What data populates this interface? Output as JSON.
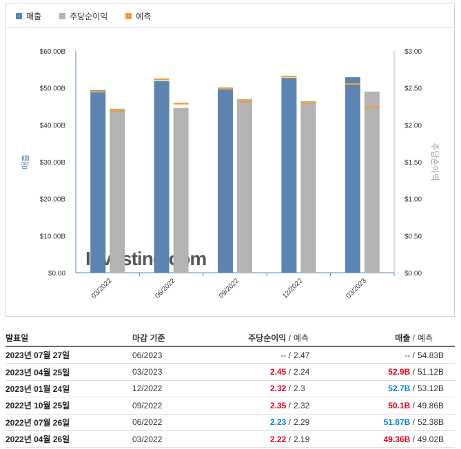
{
  "chart_data": {
    "type": "bar",
    "legend_placement": "top-left",
    "legend": [
      {
        "name": "매출",
        "color": "#5b84b1"
      },
      {
        "name": "주당순이익",
        "color": "#b3b3b3"
      },
      {
        "name": "예측",
        "color": "#e8a23a"
      }
    ],
    "categories": [
      "03/2022",
      "06/2022",
      "09/2022",
      "12/2022",
      "03/2023"
    ],
    "series": [
      {
        "name": "매출",
        "axis": "left",
        "color": "#5b84b1",
        "values": [
          49.36,
          51.87,
          50.1,
          52.7,
          52.9
        ],
        "forecast": [
          49.02,
          52.38,
          49.86,
          53.12,
          51.12
        ]
      },
      {
        "name": "주당순이익",
        "axis": "right",
        "color": "#b3b3b3",
        "values": [
          2.22,
          2.23,
          2.35,
          2.32,
          2.45
        ],
        "forecast": [
          2.19,
          2.29,
          2.32,
          2.3,
          2.24
        ]
      }
    ],
    "left_axis": {
      "label": "매출",
      "ylim": [
        0,
        60
      ],
      "ticks": [
        "$0.00",
        "$10.00B",
        "$20.00B",
        "$30.00B",
        "$40.00B",
        "$50.00B",
        "$60.00B"
      ]
    },
    "right_axis": {
      "label": "주당순이익",
      "ylim": [
        0,
        3
      ],
      "ticks": [
        "$0.00",
        "$0.50",
        "$1.00",
        "$1.50",
        "$2.00",
        "$2.50",
        "$3.00"
      ]
    },
    "grid": false,
    "watermark": "Investing.com"
  },
  "table": {
    "headers": {
      "date": "발표일",
      "period": "마감 기준",
      "eps": "주당순이익",
      "eps_forecast": "예측",
      "revenue": "매출",
      "revenue_forecast": "예측",
      "slash": "/"
    },
    "rows": [
      {
        "date": "2023년 07월 27일",
        "period": "06/2023",
        "eps": "--",
        "eps_status": "neutral",
        "eps_forecast": "2.47",
        "revenue": "--",
        "revenue_status": "neutral",
        "revenue_forecast": "54.83B"
      },
      {
        "date": "2023년 04월 25일",
        "period": "03/2023",
        "eps": "2.45",
        "eps_status": "bad",
        "eps_forecast": "2.24",
        "revenue": "52.9B",
        "revenue_status": "bad",
        "revenue_forecast": "51.12B"
      },
      {
        "date": "2023년 01월 24일",
        "period": "12/2022",
        "eps": "2.32",
        "eps_status": "bad",
        "eps_forecast": "2.3",
        "revenue": "52.7B",
        "revenue_status": "good",
        "revenue_forecast": "53.12B"
      },
      {
        "date": "2022년 10월 25일",
        "period": "09/2022",
        "eps": "2.35",
        "eps_status": "bad",
        "eps_forecast": "2.32",
        "revenue": "50.1B",
        "revenue_status": "bad",
        "revenue_forecast": "49.86B"
      },
      {
        "date": "2022년 07월 26일",
        "period": "06/2022",
        "eps": "2.23",
        "eps_status": "good",
        "eps_forecast": "2.29",
        "revenue": "51.87B",
        "revenue_status": "good",
        "revenue_forecast": "52.38B"
      },
      {
        "date": "2022년 04월 26일",
        "period": "03/2022",
        "eps": "2.22",
        "eps_status": "bad",
        "eps_forecast": "2.19",
        "revenue": "49.36B",
        "revenue_status": "bad",
        "revenue_forecast": "49.02B"
      }
    ]
  }
}
